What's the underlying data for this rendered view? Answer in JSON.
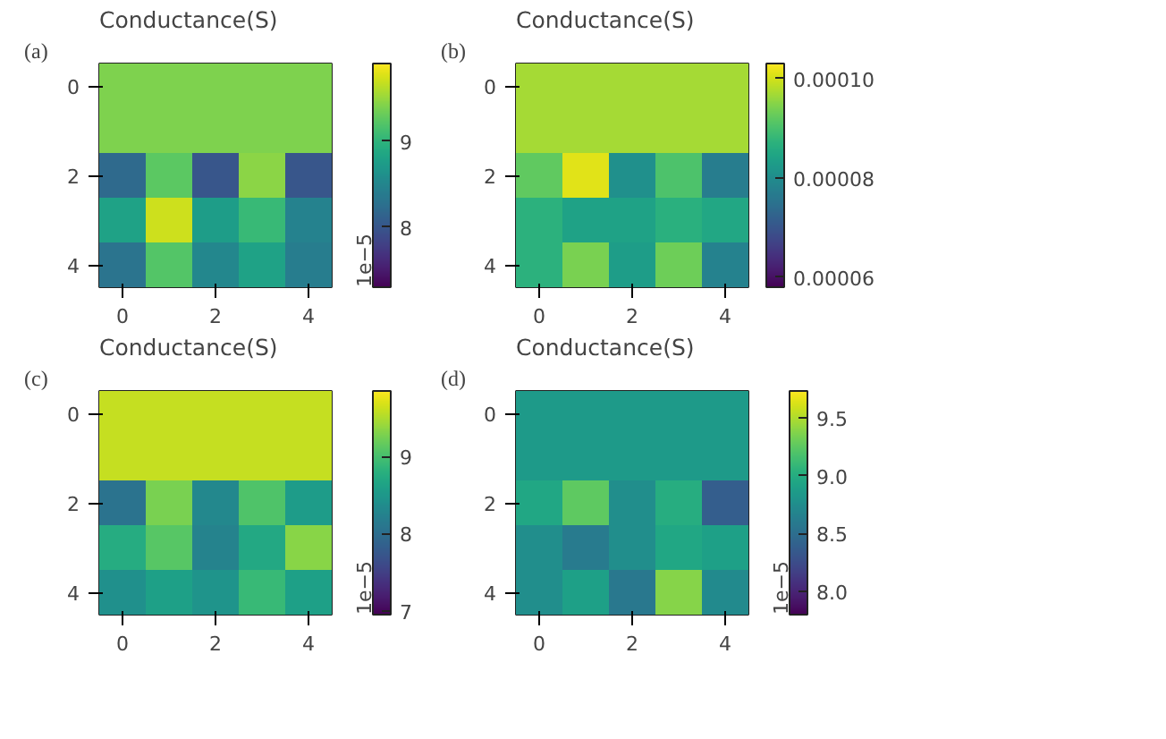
{
  "chart_data": [
    {
      "type": "heatmap",
      "title": "Conductance(S)",
      "annotations": [
        "(a)",
        "1e−5"
      ],
      "categories": [
        "0",
        null,
        "2",
        null,
        "4"
      ],
      "y_categories": [
        "0",
        null,
        "2",
        null,
        "4"
      ],
      "cells": [
        [
          9.4,
          9.4,
          9.4,
          9.4,
          9.4
        ],
        [
          9.4,
          9.4,
          9.4,
          9.4,
          9.4
        ],
        [
          8.2,
          9.25,
          8.0,
          9.45,
          8.0
        ],
        [
          8.8,
          9.7,
          8.75,
          9.05,
          8.45
        ],
        [
          8.3,
          9.2,
          8.5,
          8.8,
          8.4
        ]
      ],
      "clim": [
        7.3,
        9.9
      ],
      "cticks": [
        8,
        9
      ]
    },
    {
      "type": "heatmap",
      "title": "Conductance(S)",
      "annotations": [
        "(b)"
      ],
      "categories": [
        "0",
        null,
        "2",
        null,
        "4"
      ],
      "y_categories": [
        "0",
        null,
        "2",
        null,
        "4"
      ],
      "cells": [
        [
          9.7e-05,
          9.7e-05,
          9.7e-05,
          9.7e-05,
          9.7e-05
        ],
        [
          9.7e-05,
          9.7e-05,
          9.7e-05,
          9.7e-05,
          9.7e-05
        ],
        [
          9.2e-05,
          0.000101,
          8.05e-05,
          9.05e-05,
          7.7e-05
        ],
        [
          8.7e-05,
          8.4e-05,
          8.4e-05,
          8.65e-05,
          8.5e-05
        ],
        [
          8.7e-05,
          9.4e-05,
          8.3e-05,
          9.3e-05,
          7.8e-05
        ]
      ],
      "clim": [
        5.8e-05,
        0.000103
      ],
      "cticks": [
        {
          "value": 6e-05,
          "label": "0.00006"
        },
        {
          "value": 8e-05,
          "label": "0.00008"
        },
        {
          "value": 0.0001,
          "label": "0.00010"
        }
      ]
    },
    {
      "type": "heatmap",
      "title": "Conductance(S)",
      "annotations": [
        "(c)",
        "1e−5"
      ],
      "categories": [
        "0",
        null,
        "2",
        null,
        "4"
      ],
      "y_categories": [
        "0",
        null,
        "2",
        null,
        "4"
      ],
      "cells": [
        [
          9.6,
          9.6,
          9.6,
          9.6,
          9.6
        ],
        [
          9.6,
          9.6,
          9.6,
          9.6,
          9.6
        ],
        [
          8.05,
          9.27,
          8.3,
          9.05,
          8.55
        ],
        [
          8.75,
          9.1,
          8.25,
          8.7,
          9.33
        ],
        [
          8.4,
          8.6,
          8.45,
          8.9,
          8.6
        ]
      ],
      "clim": [
        6.95,
        9.85
      ],
      "cticks": [
        7,
        8,
        9
      ]
    },
    {
      "type": "heatmap",
      "title": "Conductance(S)",
      "annotations": [
        "(d)",
        "1e−5"
      ],
      "categories": [
        "0",
        null,
        "2",
        null,
        "4"
      ],
      "y_categories": [
        "0",
        null,
        "2",
        null,
        "4"
      ],
      "cells": [
        [
          8.85,
          8.85,
          8.85,
          8.85,
          8.85
        ],
        [
          8.85,
          8.85,
          8.85,
          8.85,
          8.85
        ],
        [
          8.95,
          9.25,
          8.75,
          9.0,
          8.38
        ],
        [
          8.75,
          8.6,
          8.75,
          8.95,
          8.9
        ],
        [
          8.75,
          8.9,
          8.57,
          9.38,
          8.72
        ]
      ],
      "clim": [
        7.8,
        9.73
      ],
      "cticks": [
        {
          "value": 8.0,
          "label": "8.0"
        },
        {
          "value": 8.5,
          "label": "8.5"
        },
        {
          "value": 9.0,
          "label": "9.0"
        },
        {
          "value": 9.5,
          "label": "9.5"
        }
      ]
    }
  ]
}
